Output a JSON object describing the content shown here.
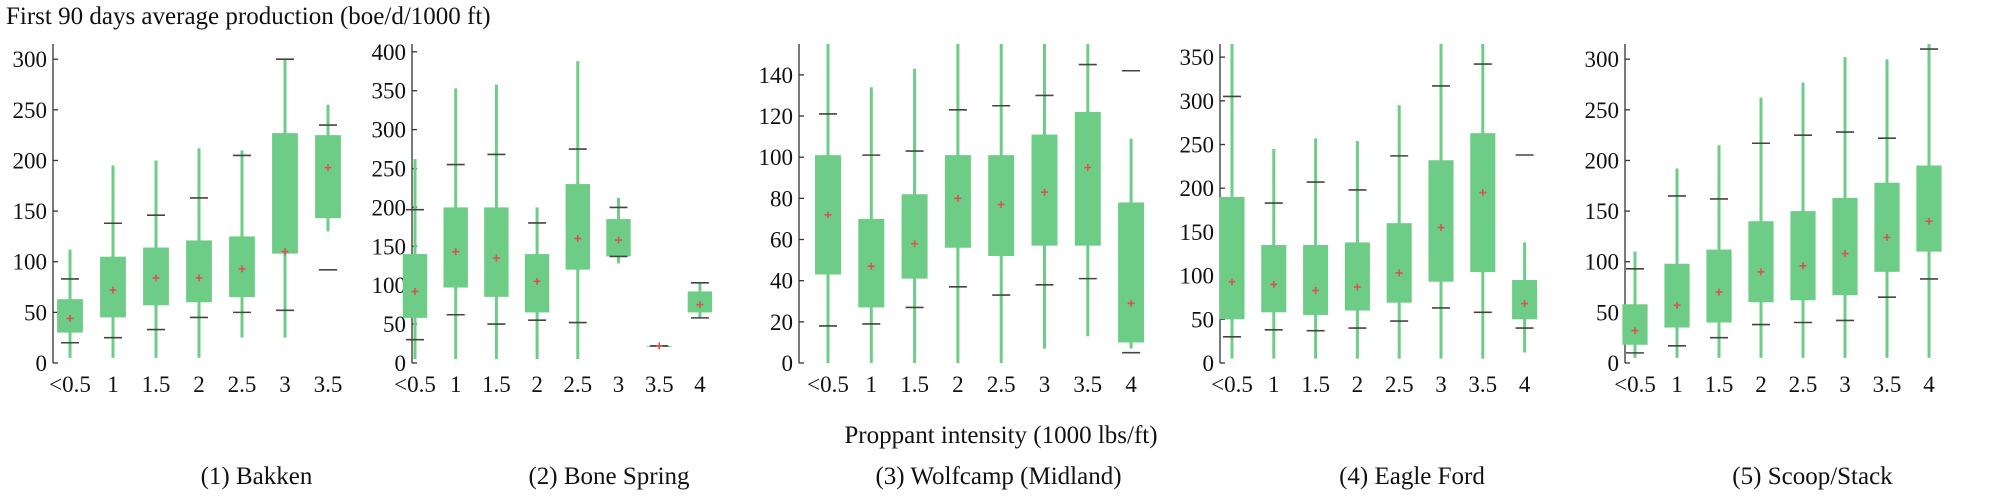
{
  "figure": {
    "ylabel": "First 90 days average production (boe/d/1000 ft)",
    "xlabel": "Proppant intensity (1000 lbs/ft)",
    "box_color": "#6dcd87",
    "whisker_color": "#6dcd87",
    "cap_color": "#444444",
    "mean_color": "#d9534f"
  },
  "chart_data": [
    {
      "type": "box",
      "title": "(1) Bakken",
      "categories": [
        "<0.5",
        "1",
        "1.5",
        "2",
        "2.5",
        "3",
        "3.5"
      ],
      "ylim": [
        0,
        315
      ],
      "yticks": [
        0,
        50,
        100,
        150,
        200,
        250,
        300
      ],
      "boxes": [
        {
          "whislo": 5,
          "q1": 30,
          "med": 45,
          "q3": 63,
          "whishi": 112,
          "caplo": 20,
          "caphi": 83,
          "mean": 44
        },
        {
          "whislo": 5,
          "q1": 45,
          "med": 72,
          "q3": 105,
          "whishi": 195,
          "caplo": 25,
          "caphi": 138,
          "mean": 72
        },
        {
          "whislo": 5,
          "q1": 57,
          "med": 84,
          "q3": 114,
          "whishi": 200,
          "caplo": 33,
          "caphi": 146,
          "mean": 84
        },
        {
          "whislo": 5,
          "q1": 60,
          "med": 84,
          "q3": 121,
          "whishi": 212,
          "caplo": 45,
          "caphi": 163,
          "mean": 84
        },
        {
          "whislo": 25,
          "q1": 65,
          "med": 93,
          "q3": 125,
          "whishi": 210,
          "caplo": 50,
          "caphi": 205,
          "mean": 93
        },
        {
          "whislo": 25,
          "q1": 108,
          "med": 110,
          "q3": 227,
          "whishi": 300,
          "caplo": 52,
          "caphi": 300,
          "mean": 110
        },
        {
          "whislo": 130,
          "q1": 143,
          "med": 193,
          "q3": 225,
          "whishi": 255,
          "caplo": 92,
          "caphi": 235,
          "mean": 193
        }
      ]
    },
    {
      "type": "box",
      "title": "(2) Bone Spring",
      "categories": [
        "<0.5",
        "1",
        "1.5",
        "2",
        "2.5",
        "3",
        "3.5",
        "4"
      ],
      "ylim": [
        0,
        410
      ],
      "yticks": [
        0,
        50,
        100,
        150,
        200,
        250,
        300,
        350,
        400
      ],
      "boxes": [
        {
          "whislo": 5,
          "q1": 58,
          "med": 92,
          "q3": 140,
          "whishi": 262,
          "caplo": 30,
          "caphi": 197,
          "mean": 92
        },
        {
          "whislo": 5,
          "q1": 97,
          "med": 143,
          "q3": 200,
          "whishi": 353,
          "caplo": 62,
          "caphi": 255,
          "mean": 143
        },
        {
          "whislo": 5,
          "q1": 85,
          "med": 135,
          "q3": 200,
          "whishi": 358,
          "caplo": 50,
          "caphi": 268,
          "mean": 135
        },
        {
          "whislo": 5,
          "q1": 65,
          "med": 105,
          "q3": 140,
          "whishi": 200,
          "caplo": 55,
          "caphi": 180,
          "mean": 105
        },
        {
          "whislo": 5,
          "q1": 120,
          "med": 160,
          "q3": 230,
          "whishi": 388,
          "caplo": 52,
          "caphi": 275,
          "mean": 160
        },
        {
          "whislo": 128,
          "q1": 137,
          "med": 158,
          "q3": 185,
          "whishi": 212,
          "caplo": 137,
          "caphi": 200,
          "mean": 158
        },
        {
          "whislo": 22,
          "q1": 22,
          "med": 22,
          "q3": 22,
          "whishi": 22,
          "caplo": 22,
          "caphi": 22,
          "mean": 22
        },
        {
          "whislo": 58,
          "q1": 65,
          "med": 75,
          "q3": 92,
          "whishi": 103,
          "caplo": 58,
          "caphi": 103,
          "mean": 75
        }
      ]
    },
    {
      "type": "box",
      "title": "(3) Wolfcamp (Midland)",
      "categories": [
        "<0.5",
        "1",
        "1.5",
        "2",
        "2.5",
        "3",
        "3.5",
        "4"
      ],
      "ylim": [
        0,
        155
      ],
      "yticks": [
        0,
        20,
        40,
        60,
        80,
        100,
        120,
        140
      ],
      "boxes": [
        {
          "whislo": 0,
          "q1": 43,
          "med": 72,
          "q3": 101,
          "whishi": 155,
          "caplo": 18,
          "caphi": 121,
          "mean": 72
        },
        {
          "whislo": 0,
          "q1": 27,
          "med": 47,
          "q3": 70,
          "whishi": 134,
          "caplo": 19,
          "caphi": 101,
          "mean": 47
        },
        {
          "whislo": 0,
          "q1": 41,
          "med": 58,
          "q3": 82,
          "whishi": 143,
          "caplo": 27,
          "caphi": 103,
          "mean": 58
        },
        {
          "whislo": 0,
          "q1": 56,
          "med": 80,
          "q3": 101,
          "whishi": 155,
          "caplo": 37,
          "caphi": 123,
          "mean": 80
        },
        {
          "whislo": 0,
          "q1": 52,
          "med": 77,
          "q3": 101,
          "whishi": 155,
          "caplo": 33,
          "caphi": 125,
          "mean": 77
        },
        {
          "whislo": 7,
          "q1": 57,
          "med": 83,
          "q3": 111,
          "whishi": 155,
          "caplo": 38,
          "caphi": 130,
          "mean": 83
        },
        {
          "whislo": 13,
          "q1": 57,
          "med": 95,
          "q3": 122,
          "whishi": 155,
          "caplo": 41,
          "caphi": 145,
          "mean": 95
        },
        {
          "whislo": 7,
          "q1": 10,
          "med": 29,
          "q3": 78,
          "whishi": 109,
          "caplo": 5,
          "caphi": 142,
          "mean": 29
        }
      ]
    },
    {
      "type": "box",
      "title": "(4) Eagle Ford",
      "categories": [
        "<0.5",
        "1",
        "1.5",
        "2",
        "2.5",
        "3",
        "3.5",
        "4"
      ],
      "ylim": [
        0,
        365
      ],
      "yticks": [
        0,
        50,
        100,
        150,
        200,
        250,
        300,
        350
      ],
      "boxes": [
        {
          "whislo": 5,
          "q1": 50,
          "med": 93,
          "q3": 190,
          "whishi": 365,
          "caplo": 30,
          "caphi": 305,
          "mean": 93
        },
        {
          "whislo": 5,
          "q1": 58,
          "med": 90,
          "q3": 135,
          "whishi": 245,
          "caplo": 38,
          "caphi": 183,
          "mean": 90
        },
        {
          "whislo": 5,
          "q1": 55,
          "med": 83,
          "q3": 135,
          "whishi": 257,
          "caplo": 37,
          "caphi": 207,
          "mean": 83
        },
        {
          "whislo": 5,
          "q1": 60,
          "med": 87,
          "q3": 138,
          "whishi": 254,
          "caplo": 40,
          "caphi": 198,
          "mean": 87
        },
        {
          "whislo": 5,
          "q1": 69,
          "med": 103,
          "q3": 160,
          "whishi": 295,
          "caplo": 48,
          "caphi": 237,
          "mean": 103
        },
        {
          "whislo": 5,
          "q1": 93,
          "med": 155,
          "q3": 232,
          "whishi": 365,
          "caplo": 63,
          "caphi": 317,
          "mean": 155
        },
        {
          "whislo": 5,
          "q1": 104,
          "med": 195,
          "q3": 263,
          "whishi": 365,
          "caplo": 58,
          "caphi": 342,
          "mean": 195
        },
        {
          "whislo": 12,
          "q1": 50,
          "med": 68,
          "q3": 95,
          "whishi": 138,
          "caplo": 40,
          "caphi": 238,
          "mean": 68
        }
      ]
    },
    {
      "type": "box",
      "title": "(5) Scoop/Stack",
      "categories": [
        "<0.5",
        "1",
        "1.5",
        "2",
        "2.5",
        "3",
        "3.5",
        "4"
      ],
      "ylim": [
        0,
        315
      ],
      "yticks": [
        0,
        50,
        100,
        150,
        200,
        250,
        300
      ],
      "boxes": [
        {
          "whislo": 5,
          "q1": 18,
          "med": 32,
          "q3": 58,
          "whishi": 110,
          "caplo": 10,
          "caphi": 93,
          "mean": 32
        },
        {
          "whislo": 5,
          "q1": 35,
          "med": 57,
          "q3": 98,
          "whishi": 192,
          "caplo": 17,
          "caphi": 165,
          "mean": 57
        },
        {
          "whislo": 5,
          "q1": 40,
          "med": 70,
          "q3": 112,
          "whishi": 215,
          "caplo": 25,
          "caphi": 162,
          "mean": 70
        },
        {
          "whislo": 5,
          "q1": 60,
          "med": 90,
          "q3": 140,
          "whishi": 262,
          "caplo": 38,
          "caphi": 217,
          "mean": 90
        },
        {
          "whislo": 5,
          "q1": 62,
          "med": 96,
          "q3": 150,
          "whishi": 277,
          "caplo": 40,
          "caphi": 225,
          "mean": 96
        },
        {
          "whislo": 5,
          "q1": 67,
          "med": 108,
          "q3": 163,
          "whishi": 302,
          "caplo": 42,
          "caphi": 228,
          "mean": 108
        },
        {
          "whislo": 5,
          "q1": 90,
          "med": 124,
          "q3": 178,
          "whishi": 300,
          "caplo": 65,
          "caphi": 222,
          "mean": 124
        },
        {
          "whislo": 5,
          "q1": 110,
          "med": 140,
          "q3": 195,
          "whishi": 315,
          "caplo": 83,
          "caphi": 310,
          "mean": 140
        }
      ]
    }
  ]
}
